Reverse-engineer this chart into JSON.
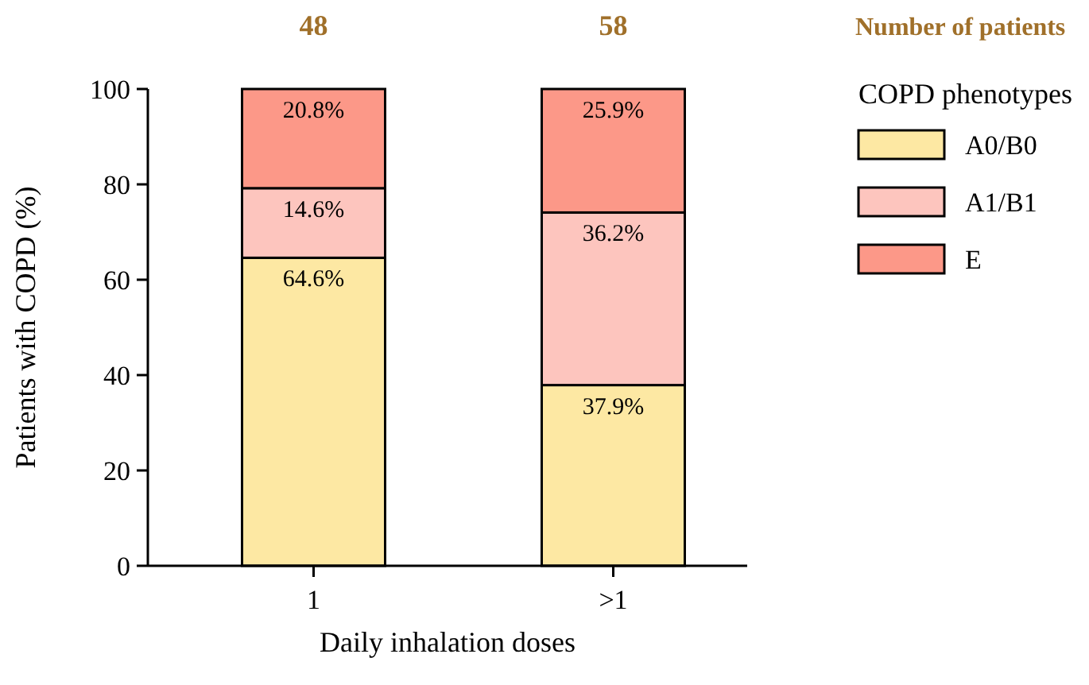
{
  "chart_data": {
    "type": "bar",
    "stacked": true,
    "xlabel": "Daily inhalation doses",
    "ylabel": "Patients with COPD (%)",
    "legend_title": "COPD phenotypes",
    "legend": "right",
    "categories": [
      "1",
      ">1"
    ],
    "series": [
      {
        "name": "A0/B0",
        "color": "#fde8a3",
        "values": [
          64.6,
          37.9
        ],
        "value_labels": [
          "64.6%",
          "37.9%"
        ]
      },
      {
        "name": "A1/B1",
        "color": "#fdc5be",
        "values": [
          14.6,
          36.2
        ],
        "value_labels": [
          "14.6%",
          "36.2%"
        ]
      },
      {
        "name": "E",
        "color": "#fc9888",
        "values": [
          20.8,
          25.9
        ],
        "value_labels": [
          "20.8%",
          "25.9%"
        ]
      }
    ],
    "ylim": [
      0,
      100
    ],
    "yticks": [
      0,
      20,
      40,
      60,
      80,
      100
    ],
    "grid": false,
    "annotations": [
      "48",
      "58",
      "Number of patients"
    ]
  }
}
